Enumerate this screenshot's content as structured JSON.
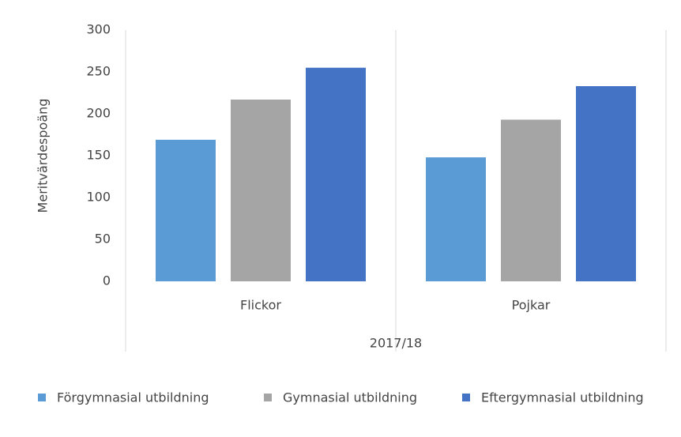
{
  "chart_data": {
    "type": "bar",
    "y_label": "Meritvärdespoäng",
    "categories": [
      "Flickor",
      "Pojkar"
    ],
    "category_group": "2017/18",
    "series": [
      {
        "name": "Förgymnasial utbildning",
        "color": "#5b9bd5",
        "values": [
          169,
          148
        ]
      },
      {
        "name": "Gymnasial utbildning",
        "color": "#a5a5a5",
        "values": [
          217,
          193
        ]
      },
      {
        "name": "Eftergymnasial utbildning",
        "color": "#4472c4",
        "values": [
          255,
          233
        ]
      }
    ],
    "ylim": [
      0,
      300
    ],
    "yticks": [
      0,
      50,
      100,
      150,
      200,
      250,
      300
    ],
    "grid": false,
    "legend": "bottom"
  }
}
